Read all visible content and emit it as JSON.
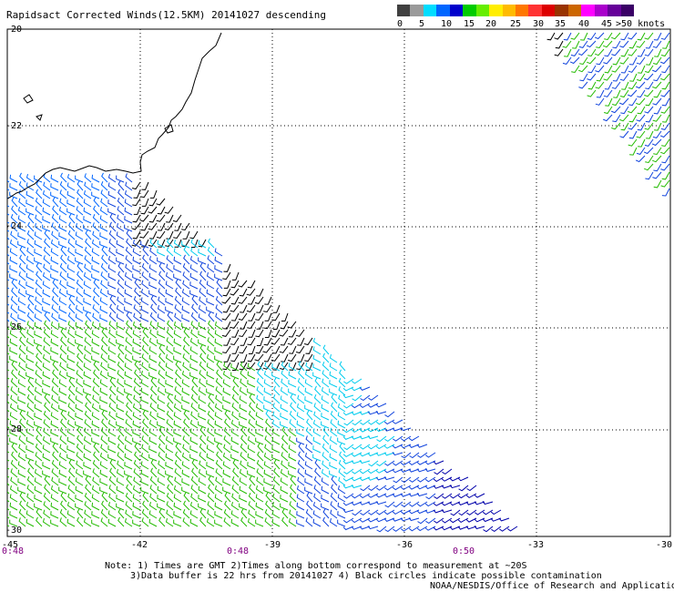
{
  "title": "Rapidsact Corrected Winds(12.5KM) 20141027 descending",
  "scale": {
    "colors": [
      "#404040",
      "#9a9a9a",
      "#00ddff",
      "#0066ff",
      "#0000cc",
      "#00cc00",
      "#66ee00",
      "#ffee00",
      "#ffbb00",
      "#ff7700",
      "#ff3333",
      "#dd0000",
      "#993300",
      "#cc6600",
      "#ff00ff",
      "#aa00cc",
      "#660099",
      "#3a0066"
    ],
    "labels": [
      "0",
      "5",
      "10",
      "15",
      "20",
      "25",
      "30",
      "35",
      "40",
      "45",
      ">50 knots"
    ]
  },
  "map": {
    "lat_labels": [
      "-20",
      "-22",
      "-24",
      "-26",
      "-28",
      "-30"
    ],
    "lon_labels": [
      "-45",
      "-42",
      "-39",
      "-36",
      "-33",
      "-30"
    ],
    "time_labels": [
      "0:48",
      "0:48",
      "0:50"
    ]
  },
  "notes": {
    "line1": "Note: 1) Times are GMT 2)Times along bottom correspond to measurement at ~20S",
    "line2": "3)Data buffer is 22 hrs from 20141027 4) Black circles indicate possible contamination"
  },
  "credit": "NOAA/NESDIS/Office of Research and Applications"
}
